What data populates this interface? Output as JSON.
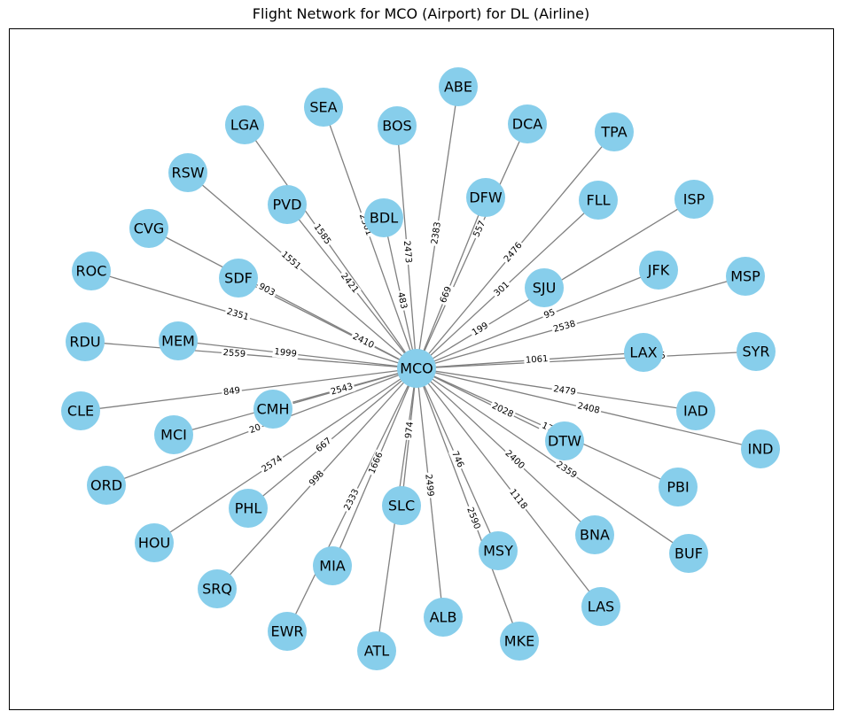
{
  "title": "Flight Network for MCO (Airport) for DL (Airline)",
  "colors": {
    "node": "#87CEEB",
    "edge": "#808080",
    "edge_label_bg": "#ffffff",
    "text": "#000000"
  },
  "hub": "MCO",
  "nodes": [
    "MCO",
    "ABE",
    "SEA",
    "BOS",
    "DCA",
    "LGA",
    "TPA",
    "RSW",
    "DFW",
    "FLL",
    "ISP",
    "PVD",
    "BDL",
    "CVG",
    "SDF",
    "JFK",
    "MSP",
    "SJU",
    "ROC",
    "MEM",
    "RDU",
    "LAX",
    "SYR",
    "CLE",
    "CMH",
    "IAD",
    "MCI",
    "DTW",
    "IND",
    "ORD",
    "PBI",
    "PHL",
    "SLC",
    "HOU",
    "BNA",
    "BUF",
    "MSY",
    "MIA",
    "SRQ",
    "LAS",
    "ALB",
    "EWR",
    "MKE",
    "ATL"
  ],
  "edges": [
    {
      "target": "ABE",
      "label": "2383"
    },
    {
      "target": "SEA",
      "label": "2301"
    },
    {
      "target": "BOS",
      "label": "2473"
    },
    {
      "target": "DCA",
      "label": "557"
    },
    {
      "target": "LGA",
      "label": "1585"
    },
    {
      "target": "TPA",
      "label": "2476"
    },
    {
      "target": "RSW",
      "label": "1551"
    },
    {
      "target": "DFW",
      "label": "669"
    },
    {
      "target": "FLL",
      "label": "301"
    },
    {
      "target": "ISP",
      "label": "199"
    },
    {
      "target": "PVD",
      "label": "2421"
    },
    {
      "target": "BDL",
      "label": "483"
    },
    {
      "target": "CVG",
      "label": "903"
    },
    {
      "target": "SDF",
      "label": "2410"
    },
    {
      "target": "JFK",
      "label": "95"
    },
    {
      "target": "MSP",
      "label": "2538"
    },
    {
      "target": "ROC",
      "label": "2351"
    },
    {
      "target": "MEM",
      "label": "1999"
    },
    {
      "target": "RDU",
      "label": "2559"
    },
    {
      "target": "LAX",
      "label": "1061"
    },
    {
      "target": "SYR",
      "label": "2325"
    },
    {
      "target": "CLE",
      "label": "849"
    },
    {
      "target": "CMH",
      "label": "2543"
    },
    {
      "target": "IAD",
      "label": "2479"
    },
    {
      "target": "MCI",
      "label": "687"
    },
    {
      "target": "IND",
      "label": "2408"
    },
    {
      "target": "DTW",
      "label": "2028"
    },
    {
      "target": "PBI",
      "label": "17"
    },
    {
      "target": "ORD",
      "label": "20"
    },
    {
      "target": "PHL",
      "label": "667"
    },
    {
      "target": "HOU",
      "label": "2574"
    },
    {
      "target": "BNA",
      "label": "2400"
    },
    {
      "target": "BUF",
      "label": "2359"
    },
    {
      "target": "SLC",
      "label": "974"
    },
    {
      "target": "MSY",
      "label": "746"
    },
    {
      "target": "MKE",
      "label": "2590"
    },
    {
      "target": "MIA",
      "label": "1666"
    },
    {
      "target": "SRQ",
      "label": "998"
    },
    {
      "target": "EWR",
      "label": "2333"
    },
    {
      "target": "LAS",
      "label": "1118"
    },
    {
      "target": "ALB",
      "label": "2499"
    },
    {
      "target": "ATL",
      "label": ""
    }
  ]
}
